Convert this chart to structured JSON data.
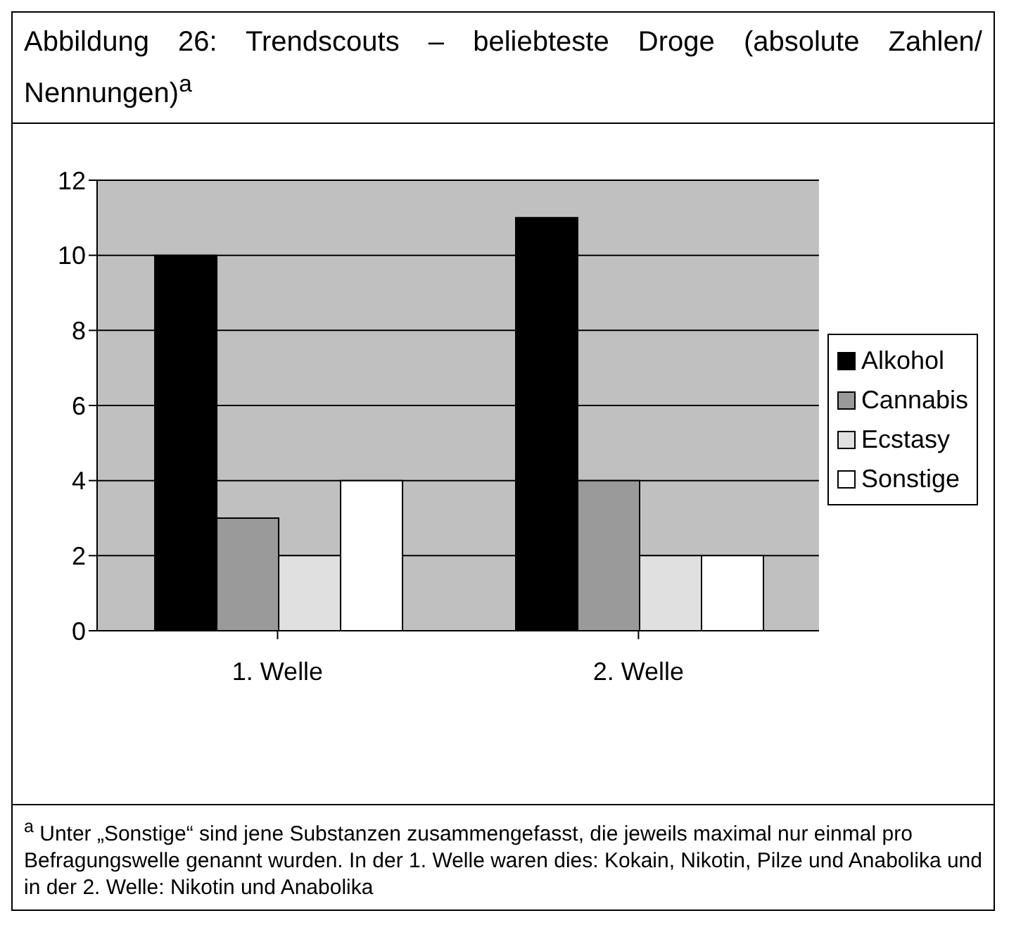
{
  "chart_data": {
    "type": "bar",
    "title": "Abbildung 26: Trendscouts – beliebteste Droge (absolute Zahlen/ Nennungen)$^{a}$",
    "categories": [
      "1. Welle",
      "2. Welle"
    ],
    "series": [
      {
        "name": "Alkohol",
        "color": "#000000",
        "values": [
          10,
          11
        ]
      },
      {
        "name": "Cannabis",
        "color": "#9a9a9a",
        "values": [
          3,
          4
        ]
      },
      {
        "name": "Ecstasy",
        "color": "#e0e0e0",
        "values": [
          2,
          2
        ]
      },
      {
        "name": "Sonstige",
        "color": "#ffffff",
        "values": [
          4,
          2
        ]
      }
    ],
    "ylim": [
      0,
      12
    ],
    "yticks": [
      0,
      2,
      4,
      6,
      8,
      10,
      12
    ],
    "grid": "y",
    "legend": "right",
    "annotations": [
      "$^{a}$ Unter „Sonstige“ sind jene Substanzen zusammengefasst, die jeweils maximal nur einmal pro Befragungswelle genannt wurden. In der 1. Welle waren dies: Kokain, Nikotin, Pilze und Anabolika und in der 2. Welle: Nikotin und Anabolika"
    ]
  }
}
